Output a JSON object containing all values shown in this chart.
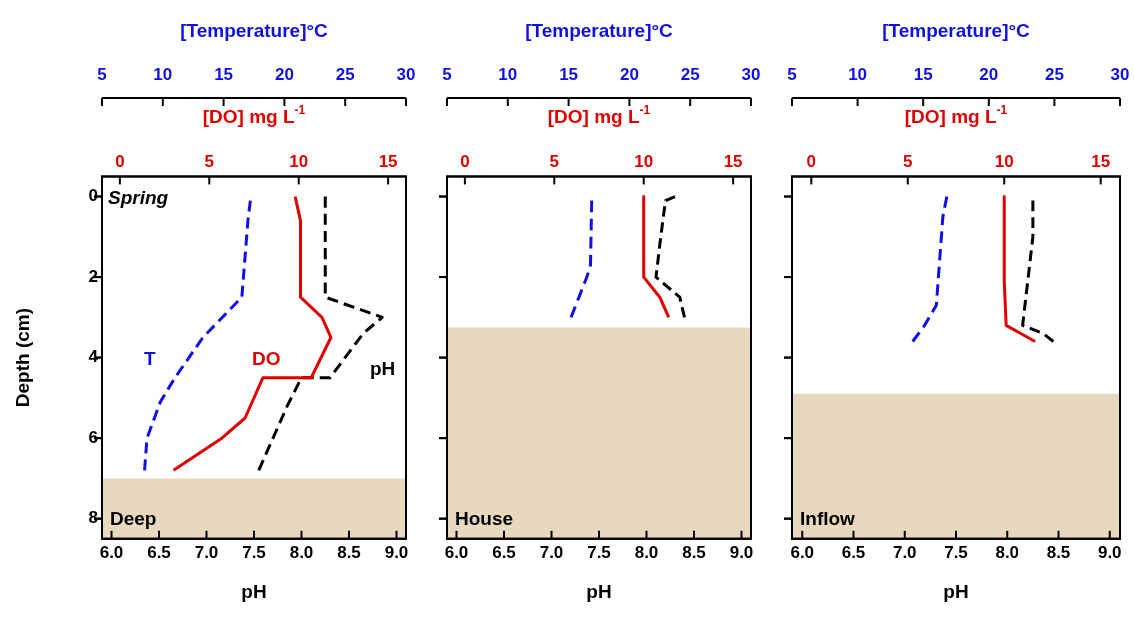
{
  "chart_data": [
    {
      "type": "line",
      "annotations": [
        "Spring"
      ],
      "xlabel": "pH",
      "x2label": "[DO] mg L$^{-1}$",
      "ylabel": "Depth (cm)",
      "grid": false,
      "legend": false,
      "xlim": [
        5.9,
        9.1
      ],
      "xticks": [
        {
          "value": 6,
          "label": "6.0"
        },
        {
          "value": 6.5,
          "label": "6.5"
        },
        {
          "value": 7,
          "label": "7.0"
        },
        {
          "value": 7.5,
          "label": "7.5"
        },
        {
          "value": 8,
          "label": "8.0"
        },
        {
          "value": 8.5,
          "label": "8.5"
        },
        {
          "value": 9,
          "label": "9.0"
        }
      ],
      "x2lim": [
        -1,
        16
      ],
      "x2ticks": [
        0,
        5,
        10,
        15
      ],
      "ylim": [
        8.5,
        -0.5
      ],
      "yticks": [
        0,
        2,
        4,
        6,
        8
      ],
      "bands": [
        {
          "axis": "y",
          "from": 7.0,
          "to": 8.5,
          "label": "Deep",
          "color": "#e6d9bd"
        }
      ],
      "series": [
        {
          "name": "DO",
          "color": "#e00000",
          "axis": "x2",
          "line_style": "solid",
          "x": [
            9.8,
            10.1,
            10.1,
            11.3,
            11.8,
            10.7,
            8.0,
            7.0,
            5.7,
            3.0
          ],
          "values": [
            0,
            0.6,
            2.5,
            3.0,
            3.5,
            4.5,
            4.5,
            5.5,
            6.0,
            6.8
          ]
        },
        {
          "name": "pH",
          "color": "#000000",
          "line_style": "dashed",
          "x": [
            8.25,
            8.25,
            8.85,
            8.65,
            8.3,
            8.0,
            7.85,
            7.55
          ],
          "values": [
            0,
            2.5,
            3.0,
            3.4,
            4.5,
            4.5,
            5.2,
            6.8
          ]
        }
      ]
    },
    {
      "type": "line",
      "xlabel": "[Temperature]°C",
      "xlim": [
        5,
        30
      ],
      "xticks": [
        5,
        10,
        15,
        20,
        25,
        30
      ],
      "ylim": [
        8.5,
        -0.5
      ],
      "yticks": [
        0,
        2,
        4,
        6,
        8
      ],
      "tick_labels": "x",
      "grid": false,
      "legend": false,
      "series": [
        {
          "name": "T",
          "color": "#1010e0",
          "line_style": "dashed",
          "x": [
            17.2,
            17.0,
            16.5,
            13.3,
            11.0,
            9.8,
            8.7,
            8.5
          ],
          "values": [
            0.1,
            0.6,
            2.5,
            3.5,
            4.5,
            5.1,
            6.0,
            6.8
          ]
        }
      ]
    },
    {
      "type": "line",
      "xlabel": "pH",
      "x2label": "[DO] mg L$^{-1}$",
      "grid": false,
      "legend": false,
      "tick_labels": "x",
      "xlim": [
        5.9,
        9.1
      ],
      "xticks": [
        {
          "value": 6,
          "label": "6.0"
        },
        {
          "value": 6.5,
          "label": "6.5"
        },
        {
          "value": 7,
          "label": "7.0"
        },
        {
          "value": 7.5,
          "label": "7.5"
        },
        {
          "value": 8,
          "label": "8.0"
        },
        {
          "value": 8.5,
          "label": "8.5"
        },
        {
          "value": 9,
          "label": "9.0"
        }
      ],
      "x2lim": [
        -1,
        16
      ],
      "x2ticks": [
        0,
        5,
        10,
        15
      ],
      "ylim": [
        8.5,
        -0.5
      ],
      "yticks": [
        0,
        2,
        4,
        6,
        8
      ],
      "bands": [
        {
          "axis": "y",
          "from": 3.25,
          "to": 8.5,
          "label": "House",
          "color": "#e6d9bd"
        }
      ],
      "series": [
        {
          "color": "#e00000",
          "axis": "x2",
          "line_style": "solid",
          "x": [
            10.0,
            10.0,
            10.9,
            11.4
          ],
          "values": [
            0,
            2.0,
            2.5,
            3.0
          ]
        },
        {
          "color": "#000000",
          "line_style": "dashed",
          "x": [
            8.3,
            8.2,
            8.15,
            8.1,
            8.2,
            8.35,
            8.4
          ],
          "values": [
            0,
            0.1,
            1.0,
            2.0,
            2.2,
            2.5,
            3.0
          ]
        }
      ]
    },
    {
      "type": "line",
      "xlabel": "[Temperature]°C",
      "xlim": [
        5,
        30
      ],
      "xticks": [
        5,
        10,
        15,
        20,
        25,
        30
      ],
      "ylim": [
        8.5,
        -0.5
      ],
      "yticks": [
        0,
        2,
        4,
        6,
        8
      ],
      "tick_labels": "x",
      "grid": false,
      "legend": false,
      "series": [
        {
          "color": "#1010e0",
          "line_style": "dashed",
          "x": [
            16.9,
            16.8,
            16.5,
            15.2
          ],
          "values": [
            0.1,
            1.7,
            2.0,
            3.0
          ]
        }
      ]
    },
    {
      "type": "line",
      "xlabel": "pH",
      "x2label": "[DO] mg L$^{-1}$",
      "grid": false,
      "legend": false,
      "tick_labels": "x",
      "xlim": [
        5.9,
        9.1
      ],
      "xticks": [
        {
          "value": 6,
          "label": "6.0"
        },
        {
          "value": 6.5,
          "label": "6.5"
        },
        {
          "value": 7,
          "label": "7.0"
        },
        {
          "value": 7.5,
          "label": "7.5"
        },
        {
          "value": 8,
          "label": "8.0"
        },
        {
          "value": 8.5,
          "label": "8.5"
        },
        {
          "value": 9,
          "label": "9.0"
        }
      ],
      "x2lim": [
        -1,
        16
      ],
      "x2ticks": [
        0,
        5,
        10,
        15
      ],
      "ylim": [
        8.5,
        -0.5
      ],
      "yticks": [
        0,
        2,
        4,
        6,
        8
      ],
      "bands": [
        {
          "axis": "y",
          "from": 4.9,
          "to": 8.5,
          "label": "Inflow",
          "color": "#e6d9bd"
        }
      ],
      "series": [
        {
          "color": "#e00000",
          "axis": "x2",
          "line_style": "solid",
          "x": [
            10.0,
            10.0,
            10.1,
            11.6
          ],
          "values": [
            0,
            2.1,
            3.2,
            3.6
          ]
        },
        {
          "color": "#000000",
          "line_style": "dashed",
          "x": [
            8.25,
            8.25,
            8.15,
            8.35,
            8.45
          ],
          "values": [
            0.1,
            1.0,
            3.2,
            3.4,
            3.6
          ]
        }
      ]
    },
    {
      "type": "line",
      "xlabel": "[Temperature]°C",
      "xlim": [
        5,
        30
      ],
      "xticks": [
        5,
        10,
        15,
        20,
        25,
        30
      ],
      "ylim": [
        8.5,
        -0.5
      ],
      "yticks": [
        0,
        2,
        4,
        6,
        8
      ],
      "tick_labels": "x",
      "grid": false,
      "legend": false,
      "series": [
        {
          "color": "#1010e0",
          "line_style": "dashed",
          "x": [
            16.8,
            16.5,
            16.0,
            15.1,
            14.2
          ],
          "values": [
            0,
            0.5,
            2.7,
            3.2,
            3.6
          ]
        }
      ]
    }
  ]
}
